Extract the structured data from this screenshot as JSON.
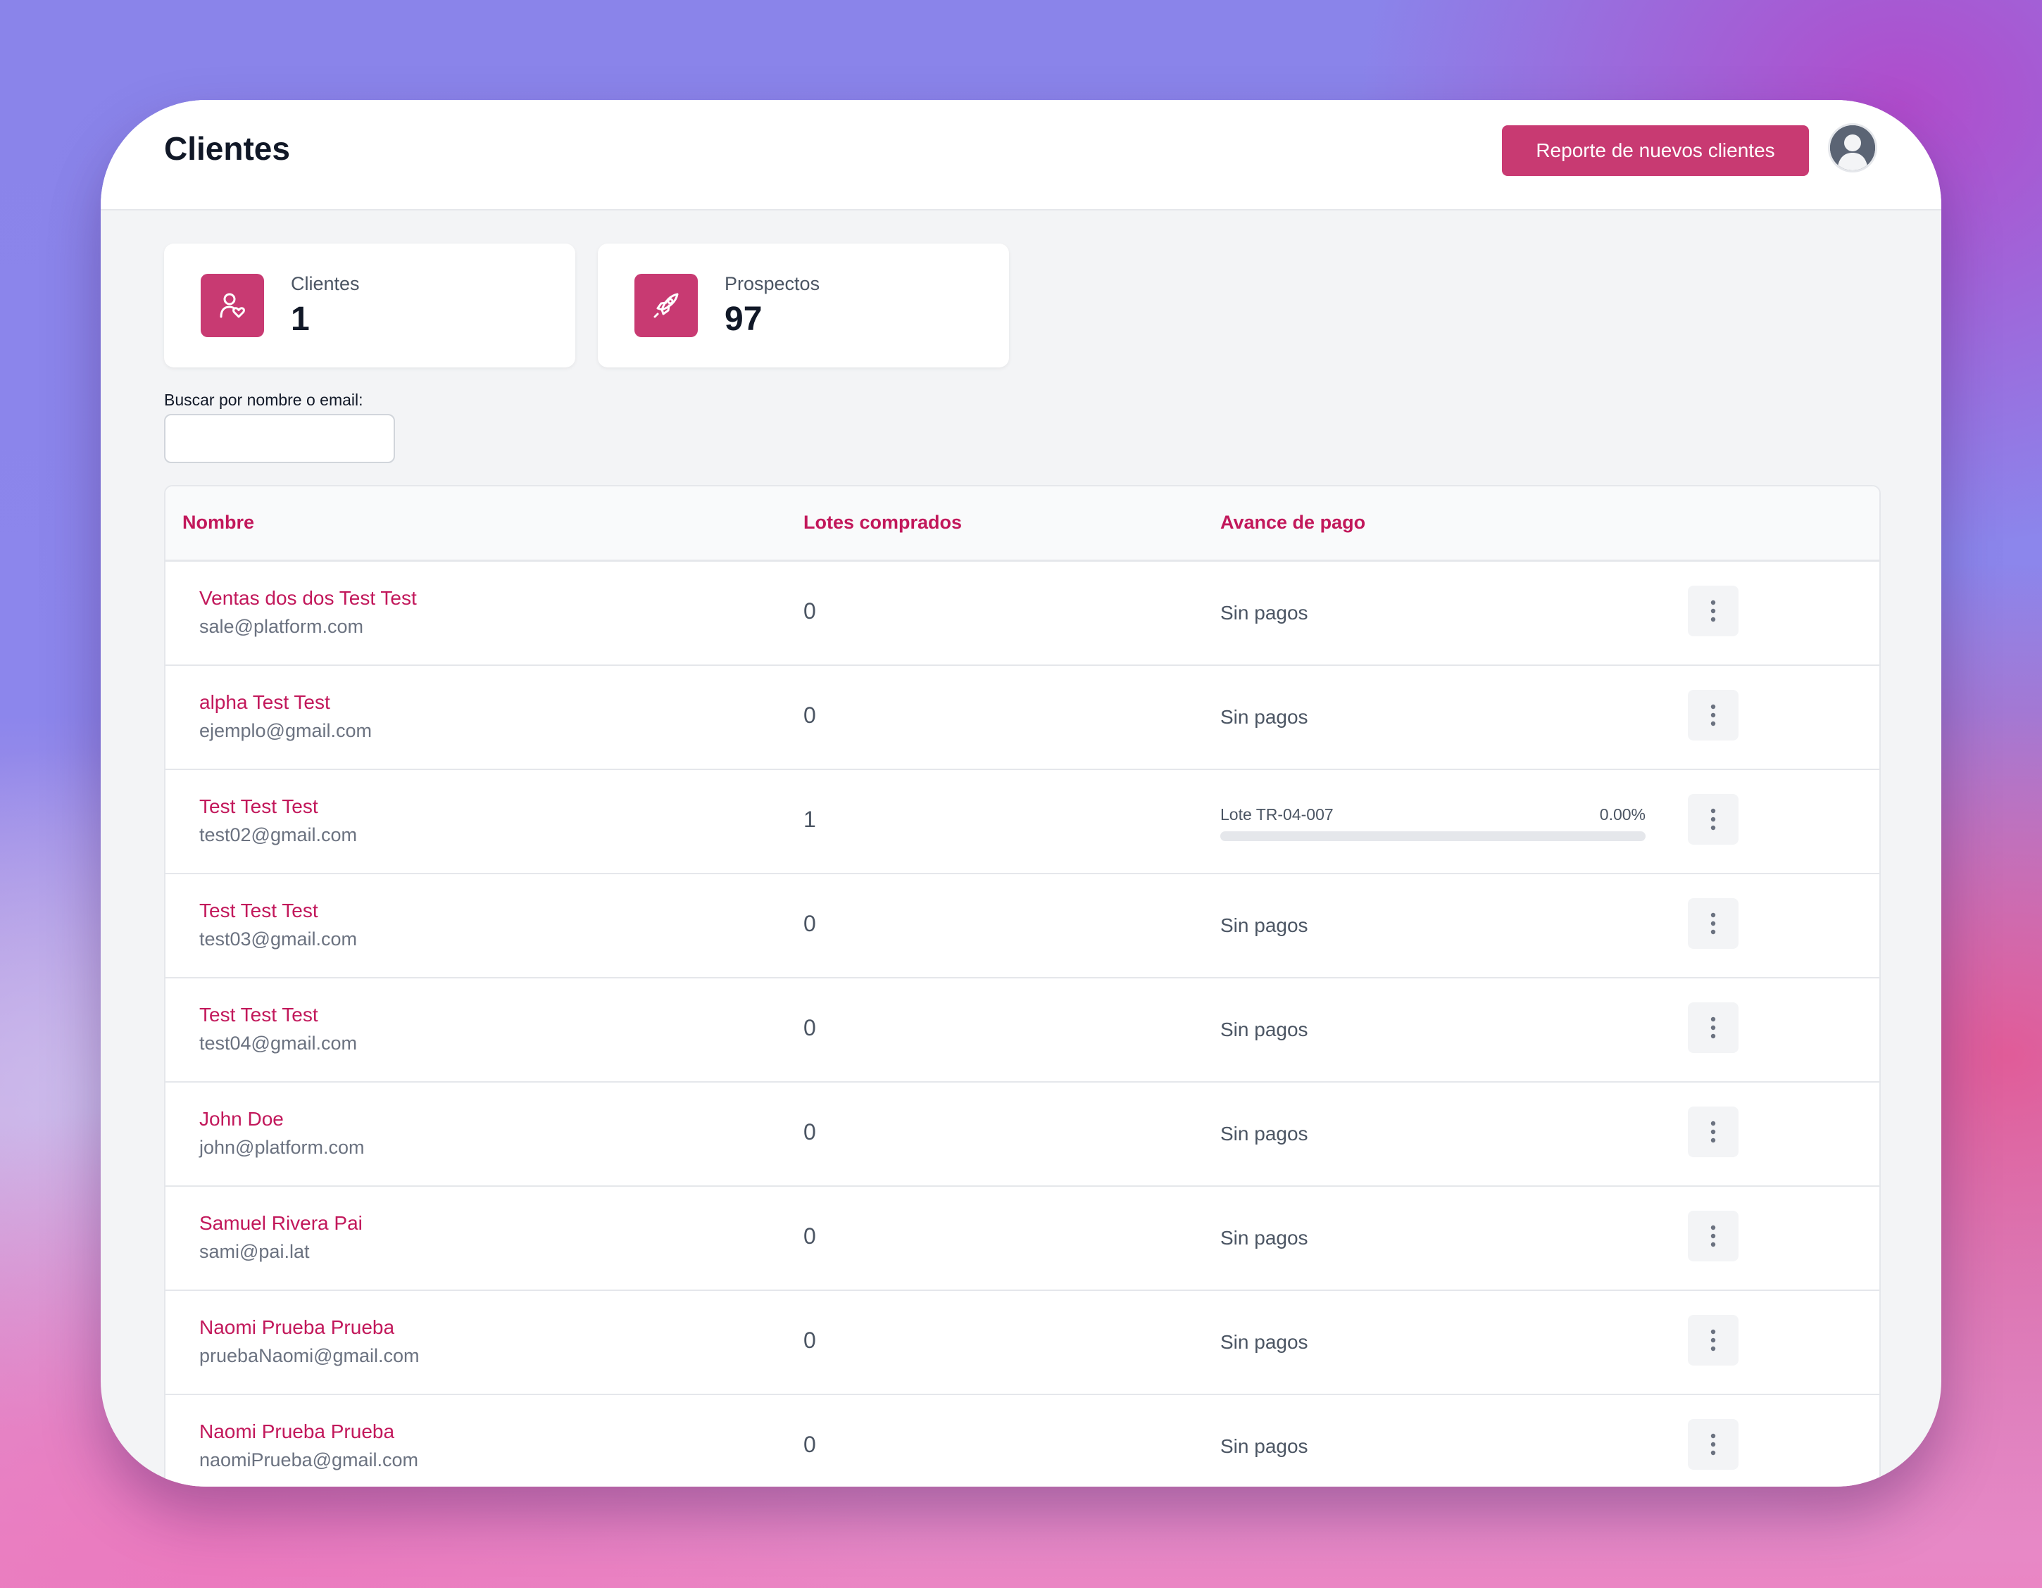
{
  "header": {
    "title": "Clientes",
    "report_button": "Reporte de nuevos clientes",
    "avatar_icon": "user-avatar-icon"
  },
  "stats": [
    {
      "label": "Clientes",
      "value": "1",
      "icon": "user-heart-icon"
    },
    {
      "label": "Prospectos",
      "value": "97",
      "icon": "rocket-icon"
    }
  ],
  "search": {
    "label": "Buscar por nombre o email:",
    "value": "",
    "placeholder": ""
  },
  "table": {
    "columns": [
      "Nombre",
      "Lotes comprados",
      "Avance de pago"
    ],
    "rows": [
      {
        "name": "Ventas dos dos Test Test",
        "email": "sale@platform.com",
        "lots": "0",
        "payment": "Sin pagos"
      },
      {
        "name": "alpha Test Test",
        "email": "ejemplo@gmail.com",
        "lots": "0",
        "payment": "Sin pagos"
      },
      {
        "name": "Test Test Test",
        "email": "test02@gmail.com",
        "lots": "1",
        "payment": null,
        "lot_progress": {
          "lot": "Lote TR-04-007",
          "percent": "0.00%",
          "value": 0
        }
      },
      {
        "name": "Test Test Test",
        "email": "test03@gmail.com",
        "lots": "0",
        "payment": "Sin pagos"
      },
      {
        "name": "Test Test Test",
        "email": "test04@gmail.com",
        "lots": "0",
        "payment": "Sin pagos"
      },
      {
        "name": "John Doe",
        "email": "john@platform.com",
        "lots": "0",
        "payment": "Sin pagos"
      },
      {
        "name": "Samuel Rivera Pai",
        "email": "sami@pai.lat",
        "lots": "0",
        "payment": "Sin pagos"
      },
      {
        "name": "Naomi Prueba Prueba",
        "email": "pruebaNaomi@gmail.com",
        "lots": "0",
        "payment": "Sin pagos"
      },
      {
        "name": "Naomi Prueba Prueba",
        "email": "naomiPrueba@gmail.com",
        "lots": "0",
        "payment": "Sin pagos"
      }
    ],
    "row_action_icon": "more-vertical-icon"
  },
  "colors": {
    "accent": "#c83a72",
    "link": "#c2185b",
    "muted": "#6b7280",
    "panel": "#f3f4f6"
  }
}
